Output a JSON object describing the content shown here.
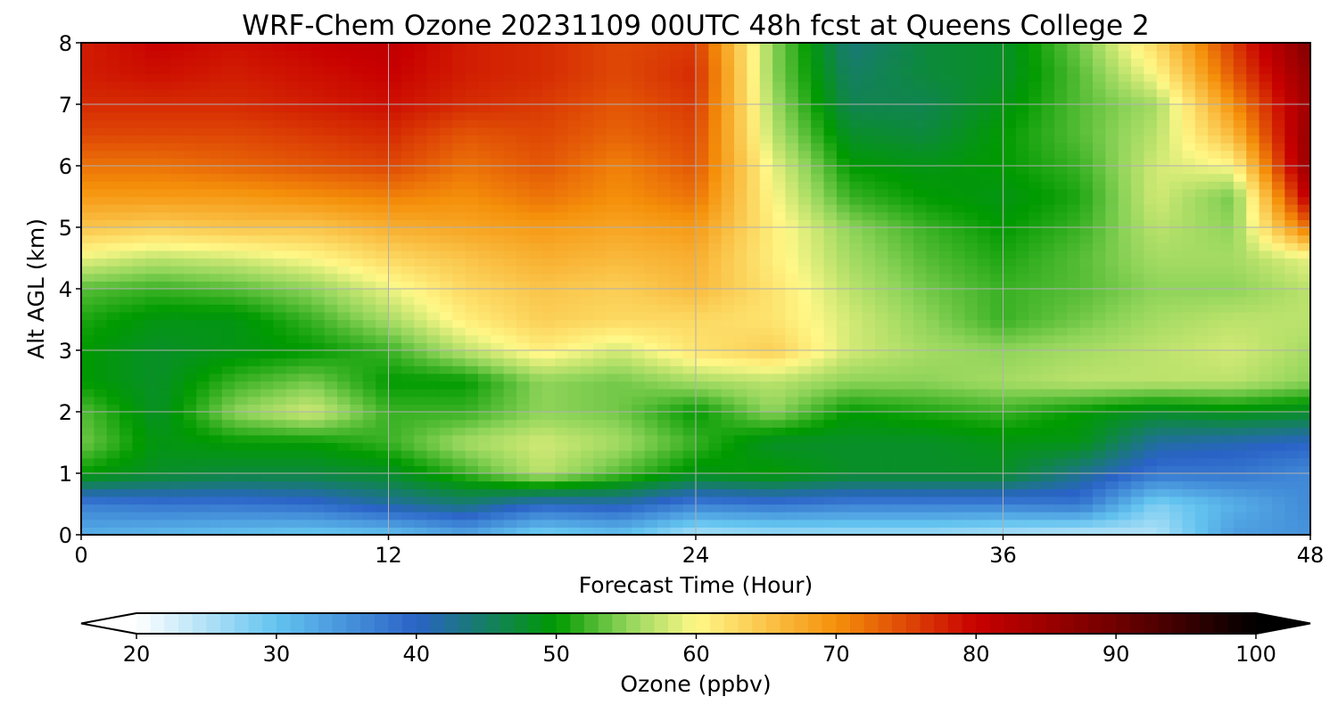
{
  "chart_data": {
    "type": "heatmap",
    "title": "WRF-Chem Ozone  20231109 00UTC 48h fcst at Queens College 2",
    "xlabel": "Forecast Time (Hour)",
    "ylabel": "Alt AGL (km)",
    "xlim": [
      0,
      48
    ],
    "ylim": [
      0,
      8
    ],
    "xticks": [
      "0",
      "12",
      "24",
      "36",
      "48"
    ],
    "yticks": [
      "0",
      "1",
      "2",
      "3",
      "4",
      "5",
      "6",
      "7",
      "8"
    ],
    "grid": true,
    "x": [
      0,
      3,
      6,
      9,
      12,
      15,
      18,
      21,
      24,
      27,
      30,
      33,
      36,
      39,
      42,
      45,
      48
    ],
    "y": [
      0,
      0.5,
      1,
      1.5,
      2,
      2.5,
      3,
      3.5,
      4,
      4.5,
      5,
      5.5,
      6,
      6.5,
      7,
      7.5,
      8
    ],
    "z": [
      [
        32,
        31,
        30,
        29,
        30,
        33,
        28,
        30,
        25,
        26,
        26,
        26,
        25,
        24,
        25,
        34,
        35
      ],
      [
        37,
        38,
        38,
        39,
        42,
        44,
        40,
        41,
        37,
        38,
        37,
        37,
        37,
        38,
        28,
        32,
        36
      ],
      [
        50,
        48,
        47,
        47,
        48,
        52,
        57,
        53,
        49,
        50,
        48,
        48,
        48,
        43,
        38,
        38,
        36
      ],
      [
        54,
        49,
        50,
        50,
        52,
        56,
        58,
        56,
        52,
        48,
        48,
        48,
        49,
        49,
        42,
        41,
        40
      ],
      [
        53,
        48,
        55,
        58,
        52,
        52,
        55,
        54,
        50,
        55,
        50,
        51,
        52,
        50,
        48,
        49,
        48
      ],
      [
        50,
        48,
        52,
        54,
        50,
        50,
        55,
        54,
        56,
        57,
        55,
        55,
        56,
        57,
        57,
        57,
        55
      ],
      [
        50,
        48,
        49,
        50,
        52,
        57,
        61,
        58,
        62,
        64,
        58,
        56,
        55,
        56,
        57,
        58,
        56
      ],
      [
        51,
        49,
        49,
        52,
        56,
        61,
        64,
        63,
        63,
        62,
        58,
        55,
        52,
        54,
        56,
        57,
        57
      ],
      [
        53,
        52,
        53,
        55,
        59,
        63,
        65,
        64,
        66,
        62,
        57,
        54,
        52,
        53,
        55,
        55,
        57
      ],
      [
        59,
        57,
        58,
        60,
        63,
        65,
        67,
        66,
        67,
        61,
        56,
        53,
        51,
        53,
        56,
        56,
        59
      ],
      [
        65,
        64,
        65,
        65,
        67,
        68,
        69,
        68,
        69,
        61,
        55,
        52,
        50,
        52,
        57,
        55,
        73
      ],
      [
        69,
        69,
        69,
        70,
        71,
        70,
        72,
        70,
        72,
        60,
        52,
        50,
        49,
        51,
        58,
        54,
        82
      ],
      [
        72,
        72,
        73,
        74,
        75,
        72,
        74,
        71,
        74,
        59,
        50,
        49,
        50,
        52,
        58,
        60,
        86
      ],
      [
        75,
        75,
        75,
        76,
        77,
        74,
        75,
        73,
        75,
        57,
        48,
        47,
        50,
        53,
        57,
        66,
        86
      ],
      [
        77,
        77,
        77,
        78,
        79,
        77,
        76,
        74,
        76,
        56,
        46,
        46,
        49,
        53,
        56,
        70,
        85
      ],
      [
        78,
        79,
        78,
        79,
        80,
        78,
        77,
        75,
        77,
        55,
        45,
        47,
        48,
        53,
        60,
        74,
        86
      ],
      [
        78,
        80,
        79,
        80,
        81,
        78,
        77,
        75,
        76,
        55,
        44,
        47,
        48,
        54,
        63,
        76,
        88
      ]
    ],
    "colorbar": {
      "label": "Ozone  (ppbv)",
      "min": 20,
      "max": 100,
      "ticks": [
        "20",
        "30",
        "40",
        "50",
        "60",
        "70",
        "80",
        "90",
        "100"
      ],
      "extend": "both",
      "stops": [
        {
          "v": 20,
          "c": "#ffffff"
        },
        {
          "v": 30,
          "c": "#63c3ef"
        },
        {
          "v": 40,
          "c": "#2a63c7"
        },
        {
          "v": 50,
          "c": "#009a00"
        },
        {
          "v": 55,
          "c": "#8fd45a"
        },
        {
          "v": 60,
          "c": "#fff888"
        },
        {
          "v": 70,
          "c": "#f5900a"
        },
        {
          "v": 80,
          "c": "#c80000"
        },
        {
          "v": 90,
          "c": "#700000"
        },
        {
          "v": 100,
          "c": "#000000"
        }
      ],
      "under_color": "#ffffff",
      "over_color": "#000000"
    }
  }
}
